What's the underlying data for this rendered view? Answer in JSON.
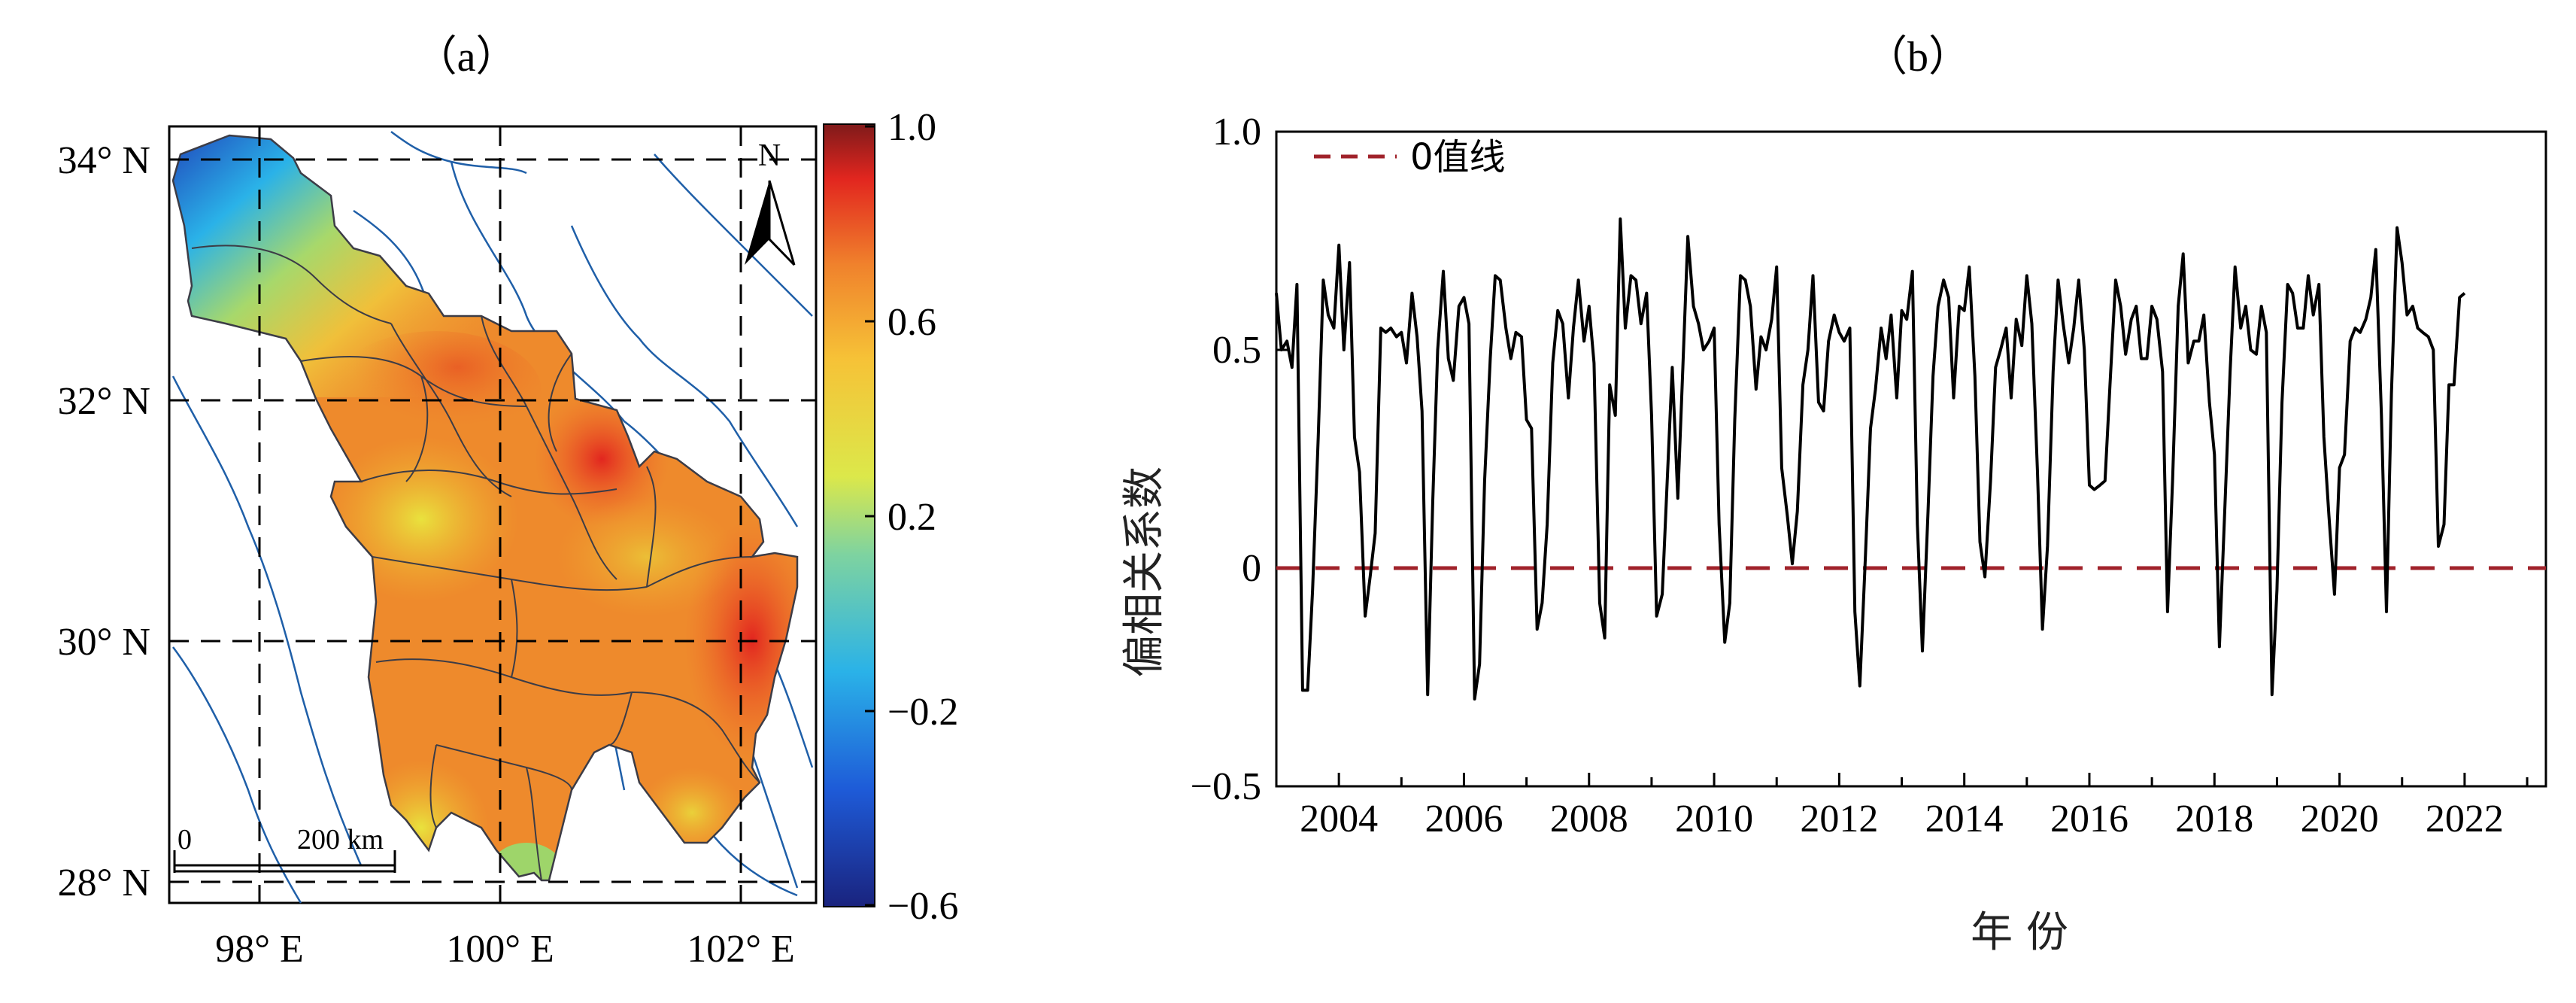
{
  "panels": {
    "a": {
      "label": "（a）"
    },
    "b": {
      "label": "（b）"
    }
  },
  "map": {
    "lat_labels": [
      "34° N",
      "32° N",
      "30° N",
      "28° N"
    ],
    "lon_labels": [
      "98° E",
      "100° E",
      "102° E"
    ],
    "north_label": "N",
    "scale_zero": "0",
    "scale_label": "200 km",
    "colorbar_ticks": [
      "1.0",
      "0.6",
      "0.2",
      "−0.2",
      "−0.6"
    ],
    "colors": {
      "river": "#1f5fa8",
      "boundary": "#3c3c46",
      "gridline": "#000000"
    }
  },
  "chart_data": {
    "type": "line",
    "ylabel": "偏相关系数",
    "xlabel": "年 份",
    "ylim": [
      -0.5,
      1.0
    ],
    "xlim": [
      2003,
      2023.3
    ],
    "y_ticks": [
      "1.0",
      "0.5",
      "0",
      "−0.5"
    ],
    "x_ticks": [
      "2004",
      "2006",
      "2008",
      "2010",
      "2012",
      "2014",
      "2016",
      "2018",
      "2020",
      "2022"
    ],
    "legend": {
      "label": "0值线",
      "placement": "top-left"
    },
    "reference_line": {
      "y": 0,
      "color": "#a0222a",
      "style": "dashed"
    },
    "series": [
      {
        "color": "#000000",
        "values": [
          [
            2003.0,
            0.63
          ],
          [
            2003.08,
            0.5
          ],
          [
            2003.17,
            0.52
          ],
          [
            2003.25,
            0.46
          ],
          [
            2003.33,
            0.65
          ],
          [
            2003.42,
            -0.28
          ],
          [
            2003.5,
            -0.28
          ],
          [
            2003.58,
            -0.05
          ],
          [
            2003.67,
            0.3
          ],
          [
            2003.75,
            0.66
          ],
          [
            2003.83,
            0.58
          ],
          [
            2003.92,
            0.55
          ],
          [
            2004.0,
            0.74
          ],
          [
            2004.08,
            0.5
          ],
          [
            2004.17,
            0.7
          ],
          [
            2004.25,
            0.3
          ],
          [
            2004.33,
            0.22
          ],
          [
            2004.42,
            -0.11
          ],
          [
            2004.5,
            -0.02
          ],
          [
            2004.58,
            0.08
          ],
          [
            2004.67,
            0.55
          ],
          [
            2004.75,
            0.54
          ],
          [
            2004.83,
            0.55
          ],
          [
            2004.92,
            0.53
          ],
          [
            2005.0,
            0.54
          ],
          [
            2005.08,
            0.47
          ],
          [
            2005.17,
            0.63
          ],
          [
            2005.25,
            0.53
          ],
          [
            2005.33,
            0.36
          ],
          [
            2005.42,
            -0.29
          ],
          [
            2005.5,
            0.15
          ],
          [
            2005.58,
            0.5
          ],
          [
            2005.67,
            0.68
          ],
          [
            2005.75,
            0.48
          ],
          [
            2005.83,
            0.43
          ],
          [
            2005.92,
            0.6
          ],
          [
            2006.0,
            0.62
          ],
          [
            2006.08,
            0.56
          ],
          [
            2006.17,
            -0.3
          ],
          [
            2006.25,
            -0.22
          ],
          [
            2006.33,
            0.2
          ],
          [
            2006.42,
            0.48
          ],
          [
            2006.5,
            0.67
          ],
          [
            2006.58,
            0.66
          ],
          [
            2006.67,
            0.55
          ],
          [
            2006.75,
            0.48
          ],
          [
            2006.83,
            0.54
          ],
          [
            2006.92,
            0.53
          ],
          [
            2007.0,
            0.34
          ],
          [
            2007.08,
            0.32
          ],
          [
            2007.17,
            -0.14
          ],
          [
            2007.25,
            -0.08
          ],
          [
            2007.33,
            0.1
          ],
          [
            2007.42,
            0.47
          ],
          [
            2007.5,
            0.59
          ],
          [
            2007.58,
            0.56
          ],
          [
            2007.67,
            0.39
          ],
          [
            2007.75,
            0.55
          ],
          [
            2007.83,
            0.66
          ],
          [
            2007.92,
            0.52
          ],
          [
            2008.0,
            0.6
          ],
          [
            2008.08,
            0.47
          ],
          [
            2008.17,
            -0.08
          ],
          [
            2008.25,
            -0.16
          ],
          [
            2008.33,
            0.42
          ],
          [
            2008.42,
            0.35
          ],
          [
            2008.5,
            0.8
          ],
          [
            2008.58,
            0.55
          ],
          [
            2008.67,
            0.67
          ],
          [
            2008.75,
            0.66
          ],
          [
            2008.83,
            0.56
          ],
          [
            2008.92,
            0.63
          ],
          [
            2009.0,
            0.35
          ],
          [
            2009.08,
            -0.11
          ],
          [
            2009.17,
            -0.06
          ],
          [
            2009.25,
            0.2
          ],
          [
            2009.33,
            0.46
          ],
          [
            2009.42,
            0.16
          ],
          [
            2009.5,
            0.46
          ],
          [
            2009.58,
            0.76
          ],
          [
            2009.67,
            0.6
          ],
          [
            2009.75,
            0.56
          ],
          [
            2009.83,
            0.5
          ],
          [
            2009.92,
            0.52
          ],
          [
            2010.0,
            0.55
          ],
          [
            2010.08,
            0.1
          ],
          [
            2010.17,
            -0.17
          ],
          [
            2010.25,
            -0.08
          ],
          [
            2010.33,
            0.34
          ],
          [
            2010.42,
            0.67
          ],
          [
            2010.5,
            0.66
          ],
          [
            2010.58,
            0.6
          ],
          [
            2010.67,
            0.41
          ],
          [
            2010.75,
            0.53
          ],
          [
            2010.83,
            0.5
          ],
          [
            2010.92,
            0.57
          ],
          [
            2011.0,
            0.69
          ],
          [
            2011.08,
            0.23
          ],
          [
            2011.17,
            0.12
          ],
          [
            2011.25,
            0.01
          ],
          [
            2011.33,
            0.13
          ],
          [
            2011.42,
            0.42
          ],
          [
            2011.5,
            0.5
          ],
          [
            2011.58,
            0.67
          ],
          [
            2011.67,
            0.38
          ],
          [
            2011.75,
            0.36
          ],
          [
            2011.83,
            0.52
          ],
          [
            2011.92,
            0.58
          ],
          [
            2012.0,
            0.54
          ],
          [
            2012.08,
            0.52
          ],
          [
            2012.17,
            0.55
          ],
          [
            2012.25,
            -0.1
          ],
          [
            2012.33,
            -0.27
          ],
          [
            2012.42,
            0.03
          ],
          [
            2012.5,
            0.32
          ],
          [
            2012.58,
            0.41
          ],
          [
            2012.67,
            0.55
          ],
          [
            2012.75,
            0.48
          ],
          [
            2012.83,
            0.58
          ],
          [
            2012.92,
            0.39
          ],
          [
            2013.0,
            0.59
          ],
          [
            2013.08,
            0.57
          ],
          [
            2013.17,
            0.68
          ],
          [
            2013.25,
            0.1
          ],
          [
            2013.33,
            -0.19
          ],
          [
            2013.42,
            0.13
          ],
          [
            2013.5,
            0.44
          ],
          [
            2013.58,
            0.6
          ],
          [
            2013.67,
            0.66
          ],
          [
            2013.75,
            0.62
          ],
          [
            2013.83,
            0.39
          ],
          [
            2013.92,
            0.6
          ],
          [
            2014.0,
            0.59
          ],
          [
            2014.08,
            0.69
          ],
          [
            2014.17,
            0.44
          ],
          [
            2014.25,
            0.06
          ],
          [
            2014.33,
            -0.02
          ],
          [
            2014.42,
            0.2
          ],
          [
            2014.5,
            0.46
          ],
          [
            2014.58,
            0.5
          ],
          [
            2014.67,
            0.55
          ],
          [
            2014.75,
            0.39
          ],
          [
            2014.83,
            0.57
          ],
          [
            2014.92,
            0.51
          ],
          [
            2015.0,
            0.67
          ],
          [
            2015.08,
            0.56
          ],
          [
            2015.17,
            0.22
          ],
          [
            2015.25,
            -0.14
          ],
          [
            2015.33,
            0.05
          ],
          [
            2015.42,
            0.45
          ],
          [
            2015.5,
            0.66
          ],
          [
            2015.58,
            0.56
          ],
          [
            2015.67,
            0.47
          ],
          [
            2015.75,
            0.55
          ],
          [
            2015.83,
            0.66
          ],
          [
            2015.92,
            0.5
          ],
          [
            2016.0,
            0.19
          ],
          [
            2016.08,
            0.18
          ],
          [
            2016.17,
            0.19
          ],
          [
            2016.25,
            0.2
          ],
          [
            2016.33,
            0.42
          ],
          [
            2016.42,
            0.66
          ],
          [
            2016.5,
            0.6
          ],
          [
            2016.58,
            0.49
          ],
          [
            2016.67,
            0.57
          ],
          [
            2016.75,
            0.6
          ],
          [
            2016.83,
            0.48
          ],
          [
            2016.92,
            0.48
          ],
          [
            2017.0,
            0.6
          ],
          [
            2017.08,
            0.57
          ],
          [
            2017.17,
            0.45
          ],
          [
            2017.25,
            -0.1
          ],
          [
            2017.33,
            0.2
          ],
          [
            2017.42,
            0.6
          ],
          [
            2017.5,
            0.72
          ],
          [
            2017.58,
            0.47
          ],
          [
            2017.67,
            0.52
          ],
          [
            2017.75,
            0.52
          ],
          [
            2017.83,
            0.58
          ],
          [
            2017.92,
            0.38
          ],
          [
            2018.0,
            0.26
          ],
          [
            2018.08,
            -0.18
          ],
          [
            2018.17,
            0.15
          ],
          [
            2018.25,
            0.45
          ],
          [
            2018.33,
            0.69
          ],
          [
            2018.42,
            0.55
          ],
          [
            2018.5,
            0.6
          ],
          [
            2018.58,
            0.5
          ],
          [
            2018.67,
            0.49
          ],
          [
            2018.75,
            0.6
          ],
          [
            2018.83,
            0.54
          ],
          [
            2018.92,
            -0.29
          ],
          [
            2019.0,
            -0.05
          ],
          [
            2019.08,
            0.38
          ],
          [
            2019.17,
            0.65
          ],
          [
            2019.25,
            0.63
          ],
          [
            2019.33,
            0.55
          ],
          [
            2019.42,
            0.55
          ],
          [
            2019.5,
            0.67
          ],
          [
            2019.58,
            0.58
          ],
          [
            2019.67,
            0.65
          ],
          [
            2019.75,
            0.3
          ],
          [
            2019.83,
            0.12
          ],
          [
            2019.92,
            -0.06
          ],
          [
            2020.0,
            0.23
          ],
          [
            2020.08,
            0.26
          ],
          [
            2020.17,
            0.52
          ],
          [
            2020.25,
            0.55
          ],
          [
            2020.33,
            0.54
          ],
          [
            2020.42,
            0.57
          ],
          [
            2020.5,
            0.62
          ],
          [
            2020.58,
            0.73
          ],
          [
            2020.67,
            0.35
          ],
          [
            2020.75,
            -0.1
          ],
          [
            2020.83,
            0.4
          ],
          [
            2020.92,
            0.78
          ],
          [
            2021.0,
            0.7
          ],
          [
            2021.08,
            0.58
          ],
          [
            2021.17,
            0.6
          ],
          [
            2021.25,
            0.55
          ],
          [
            2021.33,
            0.54
          ],
          [
            2021.42,
            0.53
          ],
          [
            2021.5,
            0.5
          ],
          [
            2021.58,
            0.05
          ],
          [
            2021.67,
            0.1
          ],
          [
            2021.75,
            0.42
          ],
          [
            2021.83,
            0.42
          ],
          [
            2021.92,
            0.62
          ],
          [
            2022.0,
            0.63
          ]
        ]
      }
    ]
  }
}
